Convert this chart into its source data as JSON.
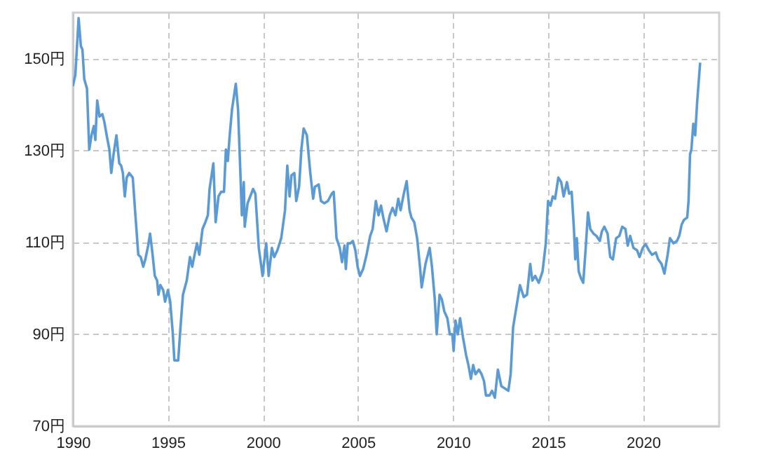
{
  "chart_data": {
    "type": "line",
    "xlim": [
      1990,
      2024
    ],
    "xticks": [
      1990,
      1995,
      2000,
      2005,
      2010,
      2015,
      2020
    ],
    "ylim": [
      70,
      160
    ],
    "yticks": [
      {
        "value": 70,
        "label": "70円"
      },
      {
        "value": 90,
        "label": "90円"
      },
      {
        "value": 110,
        "label": "110円"
      },
      {
        "value": 130,
        "label": "130円"
      },
      {
        "value": 150,
        "label": "150円"
      }
    ],
    "grid": true,
    "line_style": "solid",
    "series": [
      {
        "color": "#5b9bd5",
        "x": [
          1990.0,
          1990.13,
          1990.3,
          1990.42,
          1990.5,
          1990.6,
          1990.74,
          1990.86,
          1990.98,
          1991.1,
          1991.18,
          1991.28,
          1991.4,
          1991.55,
          1991.65,
          1991.8,
          1991.92,
          1992.02,
          1992.14,
          1992.29,
          1992.44,
          1992.54,
          1992.63,
          1992.73,
          1992.83,
          1992.96,
          1993.15,
          1993.27,
          1993.44,
          1993.57,
          1993.7,
          1993.81,
          1993.96,
          1994.06,
          1994.18,
          1994.31,
          1994.43,
          1994.5,
          1994.6,
          1994.75,
          1994.85,
          1995.0,
          1995.12,
          1995.25,
          1995.34,
          1995.54,
          1995.66,
          1995.79,
          1995.99,
          1996.16,
          1996.28,
          1996.4,
          1996.53,
          1996.65,
          1996.82,
          1996.97,
          1997.1,
          1997.19,
          1997.39,
          1997.51,
          1997.66,
          1997.8,
          1997.95,
          1998.05,
          1998.15,
          1998.25,
          1998.37,
          1998.57,
          1998.69,
          1998.82,
          1998.89,
          1998.99,
          1999.04,
          1999.19,
          1999.48,
          1999.6,
          1999.78,
          1999.98,
          2000.17,
          2000.3,
          2000.47,
          2000.59,
          2000.76,
          2000.96,
          2001.16,
          2001.28,
          2001.4,
          2001.5,
          2001.65,
          2001.75,
          2001.9,
          2002.02,
          2002.14,
          2002.31,
          2002.49,
          2002.64,
          2002.73,
          2002.93,
          2003.05,
          2003.23,
          2003.42,
          2003.62,
          2003.72,
          2003.87,
          2004.04,
          2004.16,
          2004.29,
          2004.36,
          2004.46,
          2004.6,
          2004.73,
          2004.86,
          2004.98,
          2005.1,
          2005.27,
          2005.45,
          2005.64,
          2005.77,
          2005.94,
          2006.08,
          2006.21,
          2006.33,
          2006.5,
          2006.67,
          2006.82,
          2006.97,
          2007.12,
          2007.24,
          2007.41,
          2007.56,
          2007.71,
          2007.81,
          2007.96,
          2008.11,
          2008.26,
          2008.35,
          2008.55,
          2008.77,
          2008.89,
          2009.04,
          2009.14,
          2009.29,
          2009.41,
          2009.54,
          2009.7,
          2009.83,
          2009.96,
          2010.03,
          2010.13,
          2010.25,
          2010.37,
          2010.52,
          2010.69,
          2010.81,
          2010.94,
          2011.06,
          2011.18,
          2011.36,
          2011.5,
          2011.63,
          2011.73,
          2011.92,
          2012.05,
          2012.2,
          2012.36,
          2012.54,
          2012.73,
          2012.91,
          2013.03,
          2013.16,
          2013.4,
          2013.52,
          2013.72,
          2013.89,
          2014.06,
          2014.17,
          2014.32,
          2014.51,
          2014.71,
          2014.88,
          2015.0,
          2015.13,
          2015.25,
          2015.37,
          2015.54,
          2015.69,
          2015.82,
          2015.99,
          2016.11,
          2016.24,
          2016.36,
          2016.43,
          2016.51,
          2016.61,
          2016.73,
          2016.85,
          2016.98,
          2017.1,
          2017.22,
          2017.39,
          2017.54,
          2017.72,
          2017.83,
          2017.96,
          2018.13,
          2018.27,
          2018.41,
          2018.58,
          2018.75,
          2018.9,
          2019.07,
          2019.19,
          2019.32,
          2019.49,
          2019.68,
          2019.81,
          2019.98,
          2020.13,
          2020.3,
          2020.47,
          2020.67,
          2020.79,
          2020.97,
          2021.12,
          2021.29,
          2021.41,
          2021.6,
          2021.78,
          2021.9,
          2022.03,
          2022.15,
          2022.32,
          2022.39,
          2022.47,
          2022.54,
          2022.64,
          2022.74,
          2022.84,
          2023.0
        ],
        "values": [
          144,
          146.5,
          158.8,
          152.7,
          152,
          145.5,
          143.5,
          130.2,
          133.3,
          135.3,
          132.3,
          140.9,
          137.4,
          137.9,
          136.3,
          132.8,
          130.2,
          125.1,
          129.2,
          133.3,
          127.2,
          126.7,
          125.1,
          120,
          124.1,
          125.1,
          124.1,
          117,
          107.3,
          106.8,
          104.7,
          106.3,
          109.3,
          111.9,
          107.8,
          102.7,
          101.7,
          98.6,
          100.7,
          99.6,
          97.1,
          99.6,
          97.1,
          90.5,
          84.3,
          84.3,
          91.5,
          98.6,
          101.7,
          106.8,
          104.7,
          107.3,
          109.8,
          107.3,
          112.9,
          114.4,
          115.9,
          121.6,
          127.2,
          114.4,
          120,
          121,
          121,
          130.2,
          127.7,
          133.3,
          138.9,
          144.5,
          138.9,
          124.1,
          115.9,
          123.1,
          113.4,
          118.5,
          121.6,
          120.6,
          108.8,
          102.7,
          109.8,
          102.7,
          108.8,
          106.8,
          108.3,
          110.9,
          117,
          126.7,
          120,
          124.6,
          125.1,
          119,
          122.1,
          130.2,
          134.8,
          133.3,
          125.1,
          119.5,
          122.1,
          122.6,
          119,
          118.5,
          119,
          120.6,
          121,
          110.9,
          108.8,
          105.7,
          109.3,
          104.2,
          109.8,
          109.8,
          110.3,
          108.3,
          104.7,
          102.7,
          104.2,
          107.3,
          111.4,
          112.9,
          119,
          115.9,
          118,
          115.4,
          112.4,
          115.9,
          117.5,
          115.9,
          119.5,
          117,
          120.6,
          123.3,
          117,
          115.4,
          114.4,
          110.9,
          104.7,
          100.2,
          105.3,
          108.8,
          104.7,
          97.6,
          90,
          98.6,
          97.6,
          95,
          93.5,
          90,
          90,
          86.4,
          93,
          90,
          93.5,
          89.4,
          85.4,
          83.3,
          80.3,
          83.3,
          81.3,
          82.3,
          81.3,
          79.8,
          76.7,
          76.7,
          77.7,
          76.2,
          82.3,
          78.7,
          78.2,
          77.7,
          81.3,
          91.5,
          97.6,
          100.7,
          98.1,
          98.6,
          105.3,
          101.7,
          102.7,
          101.2,
          103.7,
          109.8,
          119,
          118,
          120,
          119.5,
          124.1,
          123.1,
          120,
          123.1,
          120.6,
          121,
          112.9,
          106.3,
          110.9,
          103.7,
          102.2,
          101.2,
          108.8,
          116.5,
          112.9,
          111.9,
          111.4,
          110.3,
          112.4,
          113.4,
          111.9,
          106.8,
          106.3,
          110.9,
          111.4,
          113.4,
          112.9,
          109.3,
          111.4,
          108.8,
          108.3,
          106.8,
          108.8,
          109.6,
          108.3,
          107.3,
          107.8,
          106.3,
          105.3,
          103.2,
          107.3,
          110.9,
          109.8,
          110.3,
          111.4,
          113.9,
          114.9,
          115.4,
          119,
          129.2,
          130.2,
          135.8,
          133.3,
          140.4,
          149.1
        ]
      }
    ]
  }
}
